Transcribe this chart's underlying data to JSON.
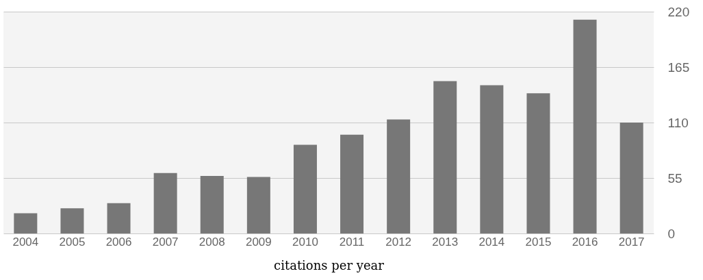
{
  "chart_data": {
    "type": "bar",
    "xlabel": "citations per year",
    "categories": [
      "2004",
      "2005",
      "2006",
      "2007",
      "2008",
      "2009",
      "2010",
      "2011",
      "2012",
      "2013",
      "2014",
      "2015",
      "2016",
      "2017"
    ],
    "values": [
      20,
      25,
      30,
      60,
      57,
      56,
      88,
      98,
      113,
      151,
      147,
      139,
      212,
      110
    ],
    "color": "#777777",
    "ylim": [
      0,
      220
    ],
    "yticks": [
      0,
      55,
      110,
      165,
      220
    ],
    "grid": "y"
  }
}
